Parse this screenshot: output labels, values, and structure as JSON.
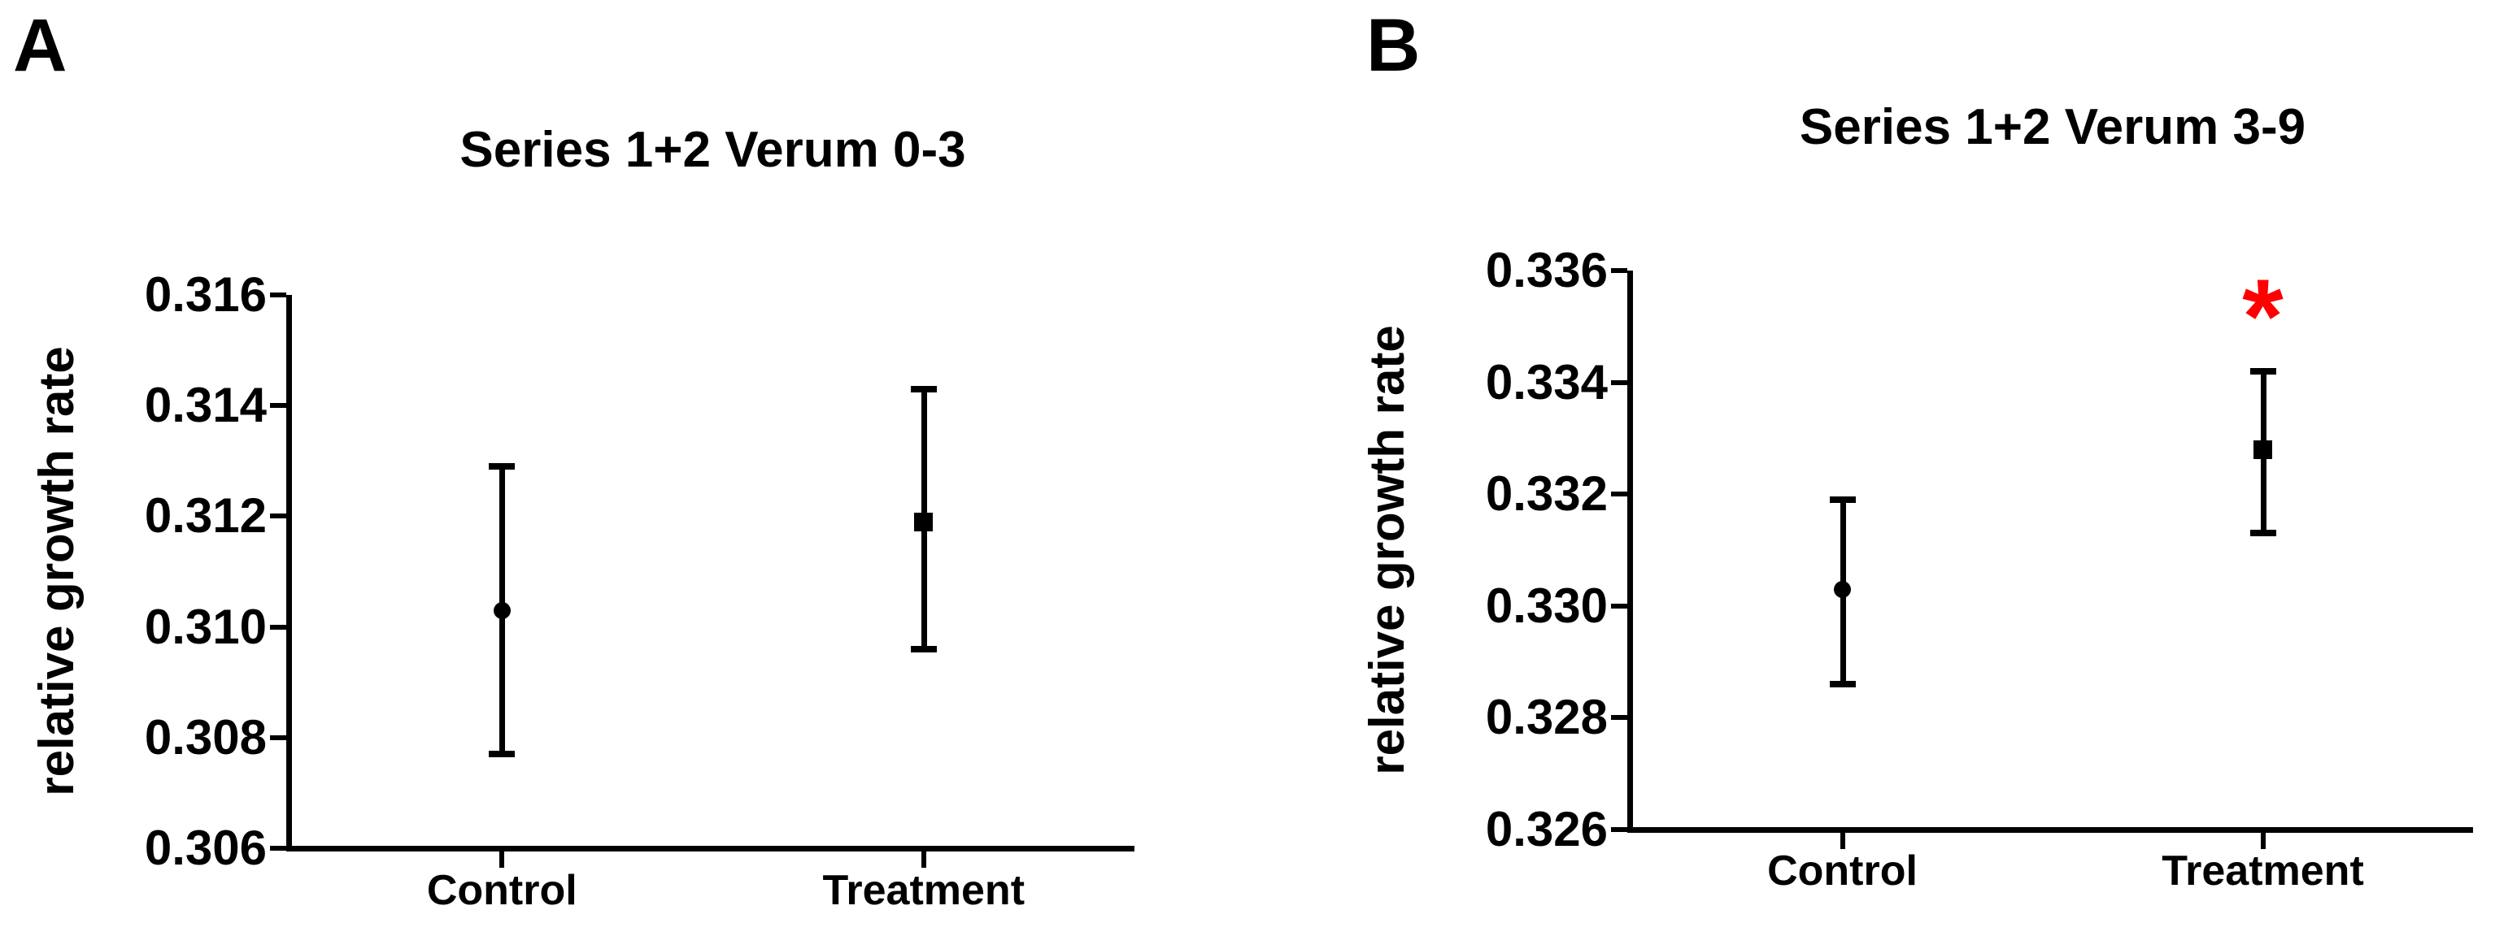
{
  "page": {
    "background": "#ffffff",
    "text_color": "#000000"
  },
  "chart_data": [
    {
      "type": "scatter",
      "panel_label": "A",
      "title": "Series 1+2 Verum 0-3",
      "xlabel": "",
      "ylabel": "relative growth rate",
      "categories": [
        "Control",
        "Treatment"
      ],
      "ylim": [
        0.306,
        0.316
      ],
      "ytick_step": 0.002,
      "yticks": [
        0.316,
        0.314,
        0.312,
        0.31,
        0.308,
        0.306
      ],
      "ytick_labels": [
        "0.316",
        "0.314",
        "0.312",
        "0.310",
        "0.308",
        "0.306"
      ],
      "grid": false,
      "legend": "none",
      "marker_color": "#000000",
      "series": [
        {
          "name": "Control",
          "marker": "circle",
          "mean": 0.3103,
          "ci_upper": 0.3129,
          "ci_lower": 0.3077
        },
        {
          "name": "Treatment",
          "marker": "square",
          "mean": 0.3119,
          "ci_upper": 0.3143,
          "ci_lower": 0.3096
        }
      ],
      "significance": null
    },
    {
      "type": "scatter",
      "panel_label": "B",
      "title": "Series 1+2 Verum 3-9",
      "xlabel": "",
      "ylabel": "relative growth rate",
      "categories": [
        "Control",
        "Treatment"
      ],
      "ylim": [
        0.326,
        0.336
      ],
      "ytick_step": 0.002,
      "yticks": [
        0.336,
        0.334,
        0.332,
        0.33,
        0.328,
        0.326
      ],
      "ytick_labels": [
        "0.336",
        "0.334",
        "0.332",
        "0.330",
        "0.328",
        "0.326"
      ],
      "grid": false,
      "legend": "none",
      "marker_color": "#000000",
      "series": [
        {
          "name": "Control",
          "marker": "circle",
          "mean": 0.3303,
          "ci_upper": 0.3319,
          "ci_lower": 0.3286
        },
        {
          "name": "Treatment",
          "marker": "square",
          "mean": 0.3328,
          "ci_upper": 0.3342,
          "ci_lower": 0.3313
        }
      ],
      "significance": {
        "symbol": "*",
        "category": "Treatment",
        "y_value": 0.3356,
        "color": "#ff0000"
      }
    }
  ]
}
